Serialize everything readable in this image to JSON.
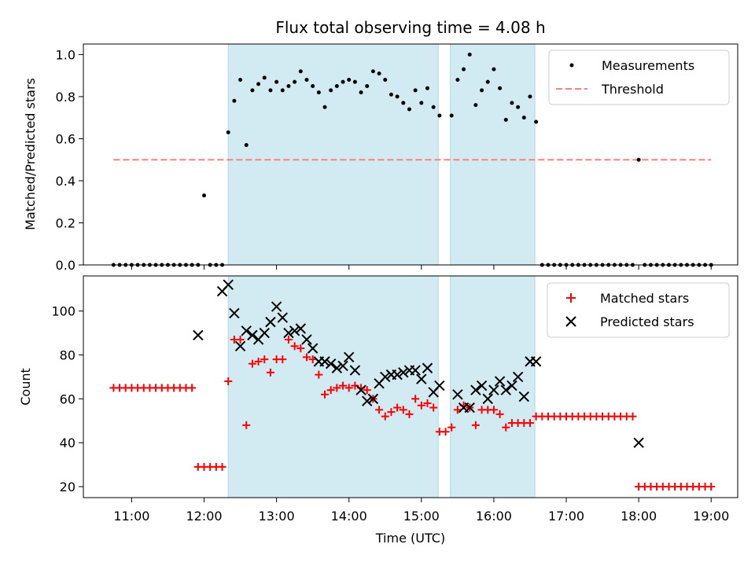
{
  "colors": {
    "measurement": "#000000",
    "threshold": "#ff7f7f",
    "matched": "#ff0000",
    "predicted": "#000000",
    "shade": "#add8e6"
  },
  "chart_data": [
    {
      "type": "scatter",
      "title": "Flux total observing time = 4.08 h",
      "xlabel": "",
      "ylabel": "Matched/Predicted stars",
      "ylim": [
        0,
        1.05
      ],
      "yticks": [
        0.0,
        0.2,
        0.4,
        0.6,
        0.8,
        1.0
      ],
      "ytick_labels": [
        "0.0",
        "0.2",
        "0.4",
        "0.6",
        "0.8",
        "1.0"
      ],
      "legend_placement": "top-right",
      "shaded_intervals": [
        [
          "12:20",
          "15:14"
        ],
        [
          "15:24",
          "16:34"
        ]
      ],
      "series": [
        {
          "name": "Measurements",
          "marker": "dot",
          "x": [
            "10:45",
            "10:50",
            "10:55",
            "11:00",
            "11:05",
            "11:10",
            "11:15",
            "11:20",
            "11:25",
            "11:30",
            "11:35",
            "11:40",
            "11:45",
            "11:50",
            "11:55",
            "12:00",
            "12:05",
            "12:10",
            "12:15",
            "12:20",
            "12:25",
            "12:30",
            "12:35",
            "12:40",
            "12:45",
            "12:50",
            "12:55",
            "13:00",
            "13:05",
            "13:10",
            "13:15",
            "13:20",
            "13:25",
            "13:30",
            "13:35",
            "13:40",
            "13:45",
            "13:50",
            "13:55",
            "14:00",
            "14:05",
            "14:10",
            "14:15",
            "14:20",
            "14:25",
            "14:30",
            "14:35",
            "14:40",
            "14:45",
            "14:50",
            "14:55",
            "15:00",
            "15:05",
            "15:10",
            "15:15",
            "15:25",
            "15:30",
            "15:35",
            "15:40",
            "15:45",
            "15:50",
            "15:55",
            "16:00",
            "16:05",
            "16:10",
            "16:15",
            "16:20",
            "16:25",
            "16:30",
            "16:35",
            "16:40",
            "16:45",
            "16:50",
            "16:55",
            "17:00",
            "17:05",
            "17:10",
            "17:15",
            "17:20",
            "17:25",
            "17:30",
            "17:35",
            "17:40",
            "17:45",
            "17:50",
            "17:55",
            "18:00",
            "18:05",
            "18:10",
            "18:15",
            "18:20",
            "18:25",
            "18:30",
            "18:35",
            "18:40",
            "18:45",
            "18:50",
            "18:55",
            "19:00"
          ],
          "y": [
            0,
            0,
            0,
            0,
            0,
            0,
            0,
            0,
            0,
            0,
            0,
            0,
            0,
            0,
            0,
            0.33,
            0,
            0,
            0,
            0.63,
            0.78,
            0.88,
            0.57,
            0.83,
            0.86,
            0.89,
            0.83,
            0.87,
            0.83,
            0.85,
            0.87,
            0.92,
            0.88,
            0.85,
            0.82,
            0.75,
            0.83,
            0.85,
            0.87,
            0.88,
            0.87,
            0.82,
            0.85,
            0.92,
            0.91,
            0.88,
            0.81,
            0.8,
            0.77,
            0.74,
            0.83,
            0.77,
            0.84,
            0.75,
            0.71,
            0.71,
            0.88,
            0.93,
            1.0,
            0.76,
            0.83,
            0.87,
            0.93,
            0.84,
            0.69,
            0.77,
            0.75,
            0.7,
            0.8,
            0.68,
            0,
            0,
            0,
            0,
            0,
            0,
            0,
            0,
            0,
            0,
            0,
            0,
            0,
            0,
            0,
            0,
            0.5,
            0,
            0,
            0,
            0,
            0,
            0,
            0,
            0,
            0,
            0,
            0,
            0
          ]
        },
        {
          "name": "Threshold",
          "style": "dashed",
          "x": [
            "10:45",
            "19:00"
          ],
          "y": [
            0.5,
            0.5
          ]
        }
      ]
    },
    {
      "type": "scatter",
      "title": "",
      "xlabel": "Time (UTC)",
      "ylabel": "Count",
      "ylim": [
        15,
        116
      ],
      "yticks": [
        20,
        40,
        60,
        80,
        100
      ],
      "ytick_labels": [
        "20",
        "40",
        "60",
        "80",
        "100"
      ],
      "xticks": [
        "11:00",
        "12:00",
        "13:00",
        "14:00",
        "15:00",
        "16:00",
        "17:00",
        "18:00",
        "19:00"
      ],
      "legend_placement": "top-right",
      "shaded_intervals": [
        [
          "12:20",
          "15:14"
        ],
        [
          "15:24",
          "16:34"
        ]
      ],
      "series": [
        {
          "name": "Matched stars",
          "marker": "plus",
          "x": [
            "10:45",
            "10:50",
            "10:55",
            "11:00",
            "11:05",
            "11:10",
            "11:15",
            "11:20",
            "11:25",
            "11:30",
            "11:35",
            "11:40",
            "11:45",
            "11:50",
            "11:55",
            "12:00",
            "12:05",
            "12:10",
            "12:15",
            "12:20",
            "12:25",
            "12:30",
            "12:35",
            "12:40",
            "12:45",
            "12:50",
            "12:55",
            "13:00",
            "13:05",
            "13:10",
            "13:15",
            "13:20",
            "13:25",
            "13:30",
            "13:35",
            "13:40",
            "13:45",
            "13:50",
            "13:55",
            "14:00",
            "14:05",
            "14:10",
            "14:15",
            "14:20",
            "14:25",
            "14:30",
            "14:35",
            "14:40",
            "14:45",
            "14:50",
            "14:55",
            "15:00",
            "15:05",
            "15:10",
            "15:15",
            "15:20",
            "15:25",
            "15:30",
            "15:35",
            "15:40",
            "15:45",
            "15:50",
            "15:55",
            "16:00",
            "16:05",
            "16:10",
            "16:15",
            "16:20",
            "16:25",
            "16:30",
            "16:35",
            "16:40",
            "16:45",
            "16:50",
            "16:55",
            "17:00",
            "17:05",
            "17:10",
            "17:15",
            "17:20",
            "17:25",
            "17:30",
            "17:35",
            "17:40",
            "17:45",
            "17:50",
            "17:55",
            "18:00",
            "18:05",
            "18:10",
            "18:15",
            "18:20",
            "18:25",
            "18:30",
            "18:35",
            "18:40",
            "18:45",
            "18:50",
            "18:55",
            "19:00"
          ],
          "y": [
            65,
            65,
            65,
            65,
            65,
            65,
            65,
            65,
            65,
            65,
            65,
            65,
            65,
            65,
            29,
            29,
            29,
            29,
            29,
            68,
            87,
            87,
            48,
            76,
            77,
            78,
            72,
            78,
            78,
            87,
            84,
            83,
            79,
            78,
            71,
            62,
            64,
            65,
            66,
            65,
            66,
            65,
            64,
            60,
            55,
            52,
            54,
            56,
            55,
            53,
            60,
            57,
            58,
            56,
            45,
            45,
            47,
            55,
            57,
            56,
            48,
            55,
            55,
            55,
            53,
            47,
            49,
            49,
            49,
            49,
            52,
            52,
            52,
            52,
            52,
            52,
            52,
            52,
            52,
            52,
            52,
            52,
            52,
            52,
            52,
            52,
            52,
            20,
            20,
            20,
            20,
            20,
            20,
            20,
            20,
            20,
            20,
            20,
            20,
            20
          ]
        },
        {
          "name": "Predicted stars",
          "marker": "x",
          "x": [
            "11:55",
            "12:15",
            "12:20",
            "12:25",
            "12:30",
            "12:35",
            "12:40",
            "12:45",
            "12:50",
            "12:55",
            "13:00",
            "13:05",
            "13:10",
            "13:15",
            "13:20",
            "13:25",
            "13:30",
            "13:35",
            "13:40",
            "13:45",
            "13:50",
            "13:55",
            "14:00",
            "14:05",
            "14:10",
            "14:15",
            "14:20",
            "14:25",
            "14:30",
            "14:35",
            "14:40",
            "14:45",
            "14:50",
            "14:55",
            "15:00",
            "15:05",
            "15:10",
            "15:15",
            "15:30",
            "15:35",
            "15:40",
            "15:45",
            "15:50",
            "15:55",
            "16:00",
            "16:05",
            "16:10",
            "16:15",
            "16:20",
            "16:25",
            "16:30",
            "16:35",
            "18:00"
          ],
          "y": [
            89,
            109,
            112,
            99,
            84,
            91,
            89,
            87,
            90,
            95,
            102,
            97,
            90,
            91,
            92,
            87,
            83,
            77,
            77,
            76,
            74,
            75,
            79,
            73,
            64,
            59,
            60,
            67,
            70,
            71,
            71,
            72,
            73,
            73,
            69,
            74,
            63,
            66,
            62,
            56,
            56,
            64,
            66,
            60,
            64,
            68,
            64,
            66,
            70,
            61,
            77,
            77,
            40
          ]
        }
      ]
    }
  ]
}
